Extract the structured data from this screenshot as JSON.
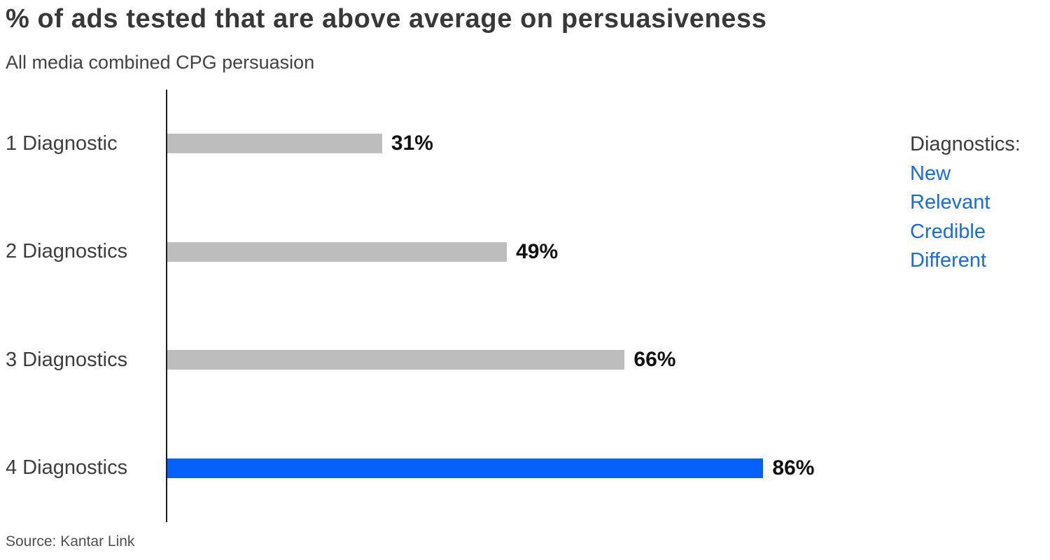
{
  "chart_data": {
    "type": "bar",
    "orientation": "horizontal",
    "title": "% of ads tested that are above average on persuasiveness",
    "subtitle": "All media combined CPG persuasion",
    "categories": [
      "1 Diagnostic",
      "2 Diagnostics",
      "3 Diagnostics",
      "4 Diagnostics"
    ],
    "values": [
      31,
      49,
      66,
      86
    ],
    "value_labels": [
      "31%",
      "49%",
      "66%",
      "86%"
    ],
    "xlabel": "",
    "ylabel": "",
    "xlim": [
      0,
      100
    ],
    "grid": false,
    "bar_colors": [
      "#bdbdbd",
      "#bdbdbd",
      "#bdbdbd",
      "#0561fb"
    ],
    "highlight_index": 3,
    "legend": {
      "position": "right",
      "title": "Diagnostics:",
      "items": [
        "New",
        "Relevant",
        "Credible",
        "Different"
      ],
      "item_color": "#146bf0"
    }
  },
  "colors": {
    "bar_gray": "#bdbdbd",
    "bar_blue": "#0561fb",
    "legend_blue": "#146bf0",
    "title_text": "#383838",
    "value_text": "#111111",
    "axis_line": "#1c1c1c"
  },
  "source": {
    "label": "Source: Kantar Link"
  }
}
